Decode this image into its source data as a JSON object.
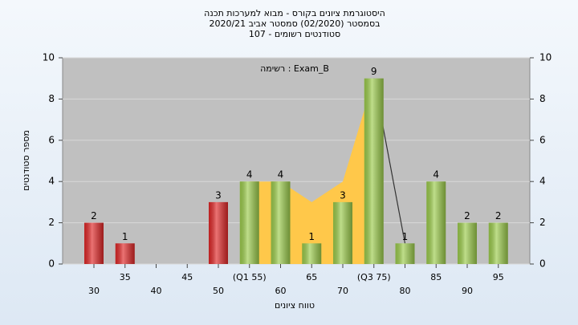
{
  "chart_data": {
    "type": "bar",
    "title": [
      "היסטוגרמת ציונים בקורס - מבוא למערכות תכנה",
      "בסמסטר (02/2020) סמסטר אביב 2020/21",
      "סטודנטים רשומים - 107"
    ],
    "annotation": "רשימה : Exam_B",
    "xlabel": "טווח ציונים",
    "ylabel": "מספר סטודנטים",
    "categories": [
      "30",
      "35",
      "40",
      "45",
      "50",
      "(Q1 55)",
      "60",
      "65",
      "70",
      "(Q3 75)",
      "80",
      "85",
      "90",
      "95"
    ],
    "values": [
      2,
      1,
      null,
      null,
      3,
      4,
      4,
      1,
      3,
      9,
      1,
      4,
      2,
      2
    ],
    "colors": [
      "#e02828",
      "#e02828",
      "#e02828",
      "#e02828",
      "#e02828",
      "#9ccc4c",
      "#9ccc4c",
      "#9ccc4c",
      "#9ccc4c",
      "#9ccc4c",
      "#9ccc4c",
      "#9ccc4c",
      "#9ccc4c",
      "#9ccc4c"
    ],
    "area_values": [
      null,
      null,
      null,
      null,
      null,
      4,
      4,
      3,
      4,
      9,
      null,
      null,
      null,
      null
    ],
    "area_color": "#ffc84a",
    "line_values": [
      null,
      null,
      null,
      null,
      null,
      null,
      null,
      null,
      null,
      9,
      1,
      null,
      null,
      null
    ],
    "line_color": "#333333",
    "ylim": [
      0,
      10
    ],
    "yticks": [
      0,
      2,
      4,
      6,
      8,
      10
    ],
    "y2lim": [
      0,
      10
    ],
    "y2ticks": [
      0,
      2,
      4,
      6,
      8,
      10
    ],
    "grid": true
  }
}
